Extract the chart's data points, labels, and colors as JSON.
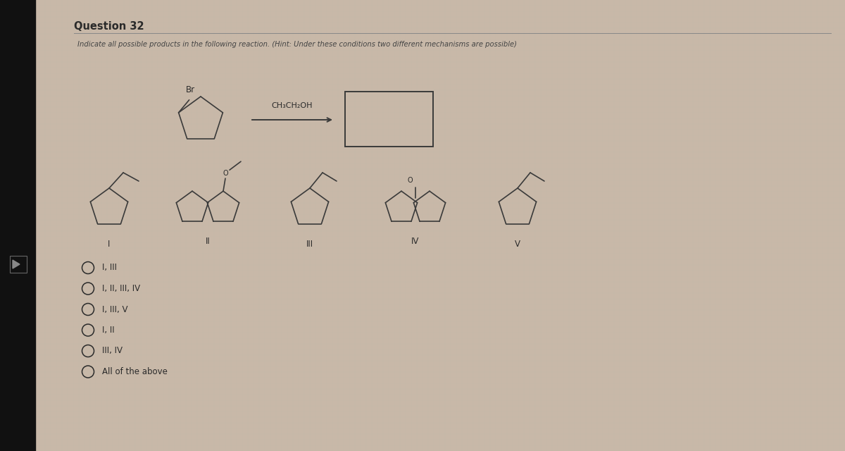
{
  "title": "Question 32",
  "subtitle": "Indicate all possible products in the following reaction. (Hint: Under these conditions two different mechanisms are possible)",
  "bg_outer": "#c8b8a8",
  "bg_left_panel": "#1a1a1a",
  "bg_content": "#dcd8d2",
  "text_color": "#2a2a2a",
  "line_color": "#3a3a3a",
  "options": [
    "I, III",
    "I, II, III, IV",
    "I, III, V",
    "I, II",
    "III, IV",
    "All of the above"
  ],
  "fig_width": 12.0,
  "fig_height": 6.4
}
